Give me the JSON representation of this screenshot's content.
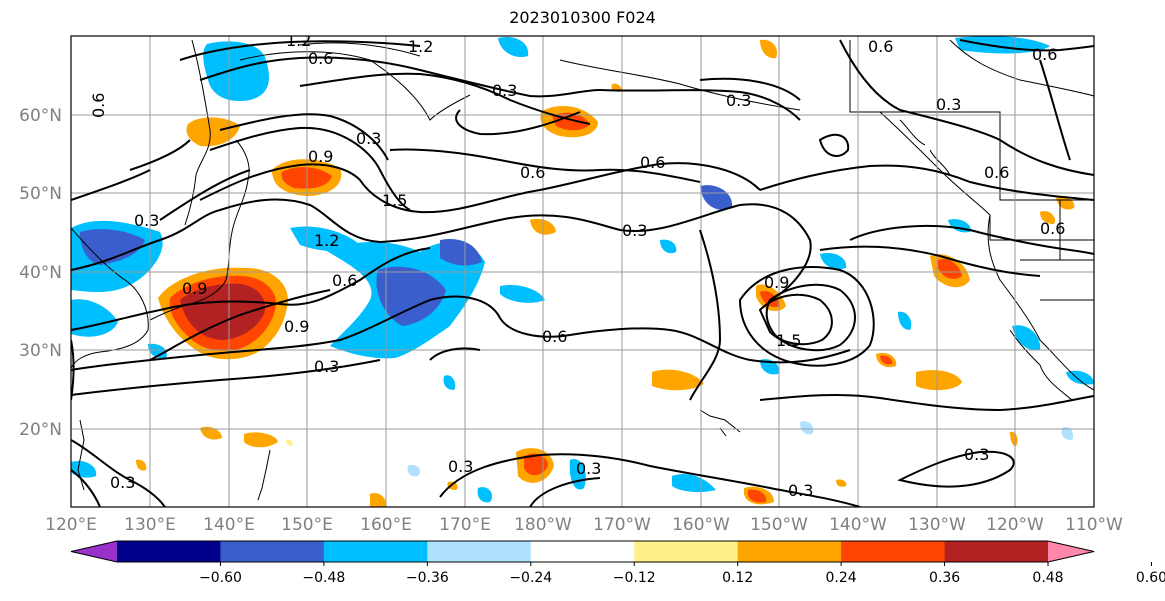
{
  "title": "2023010300 F024",
  "lon_labels": [
    "120°E",
    "130°E",
    "140°E",
    "150°E",
    "160°E",
    "170°E",
    "180°W",
    "170°W",
    "160°W",
    "150°W",
    "140°W",
    "130°W",
    "120°W",
    "110°W"
  ],
  "lat_labels": [
    "20°N",
    "30°N",
    "40°N",
    "50°N",
    "60°N"
  ],
  "colorbar": {
    "colors": [
      "#9932cc",
      "#00008b",
      "#3a5fcd",
      "#00bfff",
      "#b0e2ff",
      "#ffffff",
      "#fff08a",
      "#ffa500",
      "#ff4500",
      "#b22222",
      "#ff88aa"
    ],
    "tick_labels": [
      "−0.60",
      "−0.48",
      "−0.36",
      "−0.24",
      "−0.12",
      "0.12",
      "0.24",
      "0.36",
      "0.48",
      "0.60"
    ]
  },
  "contour_labels": [
    "1.2",
    "1.2",
    "0.6",
    "0.6",
    "0.6",
    "0.3",
    "0.3",
    "0.9",
    "1.5",
    "1.2",
    "0.6",
    "0.6",
    "0.3",
    "0.3",
    "0.3",
    "0.6",
    "0.9",
    "0.9",
    "0.6",
    "0.3",
    "0.9",
    "1.5",
    "0.3",
    "0.3",
    "0.3",
    "0.3",
    "0.3",
    "0.6",
    "0.6",
    "0.3",
    "0.6"
  ]
}
